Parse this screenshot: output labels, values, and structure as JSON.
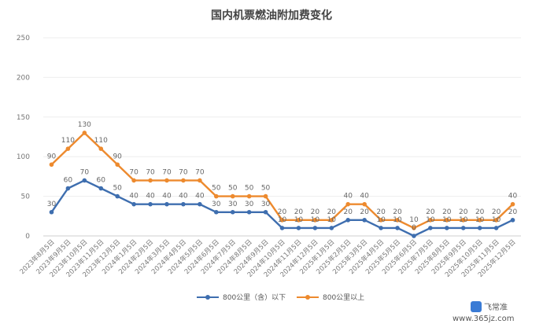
{
  "chart_data": {
    "type": "line",
    "title": "国内机票燃油附加费变化",
    "xlabel": "",
    "ylabel": "",
    "ylim": [
      0,
      250
    ],
    "yticks": [
      0,
      50,
      100,
      150,
      200,
      250
    ],
    "grid": true,
    "legend_position": "bottom",
    "categories": [
      "2023年8月5日",
      "2023年9月5日",
      "2023年10月5日",
      "2023年11月5日",
      "2023年12月5日",
      "2024年1月5日",
      "2024年2月5日",
      "2024年3月5日",
      "2024年4月5日",
      "2024年5月5日",
      "2024年6月5日",
      "2024年7月5日",
      "2024年8月5日",
      "2024年9月5日",
      "2024年10月5日",
      "2024年11月5日",
      "2024年12月5日",
      "2025年1月5日",
      "2025年2月5日",
      "2025年3月5日",
      "2025年4月5日",
      "2025年5月5日",
      "2025年6月5日",
      "2025年7月5日",
      "2025年8月5日",
      "2025年9月5日",
      "2025年10月5日",
      "2025年11月5日",
      "2025年12月5日"
    ],
    "series": [
      {
        "name": "800公里（含）以下",
        "color": "#3E6EAF",
        "values": [
          30,
          60,
          70,
          60,
          50,
          40,
          40,
          40,
          40,
          40,
          30,
          30,
          30,
          30,
          10,
          10,
          10,
          10,
          20,
          20,
          10,
          10,
          0,
          10,
          10,
          10,
          10,
          10,
          20
        ]
      },
      {
        "name": "800公里以上",
        "color": "#ED8A2E",
        "values": [
          90,
          110,
          130,
          110,
          90,
          70,
          70,
          70,
          70,
          70,
          50,
          50,
          50,
          50,
          20,
          20,
          20,
          20,
          40,
          40,
          20,
          20,
          10,
          20,
          20,
          20,
          20,
          20,
          40
        ]
      }
    ]
  },
  "watermark": {
    "logo_text": "飞常准",
    "url": "www.365jz.com"
  }
}
